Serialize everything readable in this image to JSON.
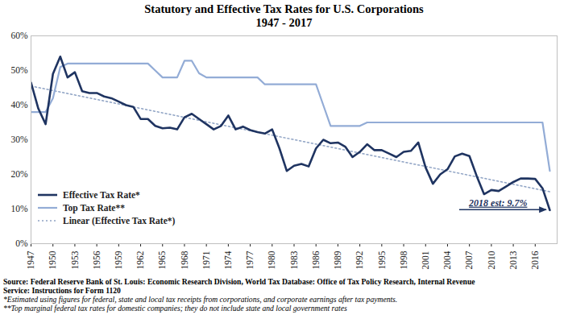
{
  "chart_data": {
    "type": "line",
    "title": "Statutory and Effective Tax Rates for U.S. Corporations",
    "subtitle": "1947 - 2017",
    "x": [
      1947,
      1948,
      1949,
      1950,
      1951,
      1952,
      1953,
      1954,
      1955,
      1956,
      1957,
      1958,
      1959,
      1960,
      1961,
      1962,
      1963,
      1964,
      1965,
      1966,
      1967,
      1968,
      1969,
      1970,
      1971,
      1972,
      1973,
      1974,
      1975,
      1976,
      1977,
      1978,
      1979,
      1980,
      1981,
      1982,
      1983,
      1984,
      1985,
      1986,
      1987,
      1988,
      1989,
      1990,
      1991,
      1992,
      1993,
      1994,
      1995,
      1996,
      1997,
      1998,
      1999,
      2000,
      2001,
      2002,
      2003,
      2004,
      2005,
      2006,
      2007,
      2008,
      2009,
      2010,
      2011,
      2012,
      2013,
      2014,
      2015,
      2016,
      2017,
      2018
    ],
    "xlim": [
      1947,
      2019
    ],
    "xticks": [
      1947,
      1950,
      1953,
      1956,
      1959,
      1962,
      1965,
      1968,
      1971,
      1974,
      1977,
      1980,
      1983,
      1986,
      1989,
      1992,
      1995,
      1998,
      2001,
      2004,
      2007,
      2010,
      2013,
      2016
    ],
    "ylim": [
      0,
      60
    ],
    "yticks": [
      {
        "value": 0,
        "label": "0%"
      },
      {
        "value": 10,
        "label": "10%"
      },
      {
        "value": 20,
        "label": "20%"
      },
      {
        "value": 30,
        "label": "30%"
      },
      {
        "value": 40,
        "label": "40%"
      },
      {
        "value": 50,
        "label": "50%"
      },
      {
        "value": 60,
        "label": "60%"
      }
    ],
    "grid": false,
    "legend": "lower left",
    "series": [
      {
        "name": "Effective Tax Rate*",
        "color": "#1f3461",
        "line_style": "solid",
        "values": [
          46.5,
          39,
          34.5,
          49,
          54,
          48,
          49.5,
          44,
          43.5,
          43.5,
          42.5,
          42,
          41,
          40,
          39.5,
          36,
          36,
          34,
          33.3,
          33.5,
          33,
          36.5,
          37.5,
          36,
          34.5,
          33,
          34,
          37,
          33,
          33.8,
          32.8,
          32.2,
          31.8,
          33,
          27.5,
          21,
          22.5,
          23,
          22.3,
          27.5,
          30,
          29,
          29.2,
          28,
          25,
          26.5,
          28.7,
          27,
          27,
          26,
          25,
          26.5,
          26.8,
          29.2,
          22,
          17.3,
          20,
          21.5,
          25.2,
          26,
          25.3,
          19.5,
          14.3,
          15.5,
          15.2,
          16.5,
          17.8,
          18.8,
          18.8,
          18.7,
          16,
          9.7
        ]
      },
      {
        "name": "Top Tax Rate**",
        "color": "#93acd6",
        "line_style": "solid",
        "values": [
          38,
          38,
          38,
          42,
          51,
          52,
          52,
          52,
          52,
          52,
          52,
          52,
          52,
          52,
          52,
          52,
          52,
          50,
          48,
          48,
          48,
          52.8,
          52.8,
          49.2,
          48,
          48,
          48,
          48,
          48,
          48,
          48,
          48,
          46,
          46,
          46,
          46,
          46,
          46,
          46,
          46,
          40,
          34,
          34,
          34,
          34,
          34,
          35,
          35,
          35,
          35,
          35,
          35,
          35,
          35,
          35,
          35,
          35,
          35,
          35,
          35,
          35,
          35,
          35,
          35,
          35,
          35,
          35,
          35,
          35,
          35,
          35,
          21
        ]
      },
      {
        "name": "Linear (Effective Tax Rate*)",
        "color": "#8fa3c4",
        "line_style": "dotted",
        "x": [
          1947,
          2018
        ],
        "values": [
          45.5,
          15
        ]
      }
    ],
    "annotations": [
      {
        "text": "2018 est: 9.7%",
        "x": 2018,
        "y": 9.7
      }
    ],
    "source": "Source: Federal Reserve Bank of St. Louis: Economic Research Division, World Tax Database: Office of Tax Policy Research, Internal Revenue Service: Instructions for Form 1120",
    "notes": [
      "*Estimated using figures for federal, state and local tax receipts from corporations, and corporate earnings after tax payments.",
      "**Top marginal federal tax rates for domestic companies; they do not include state and local government rates"
    ]
  }
}
